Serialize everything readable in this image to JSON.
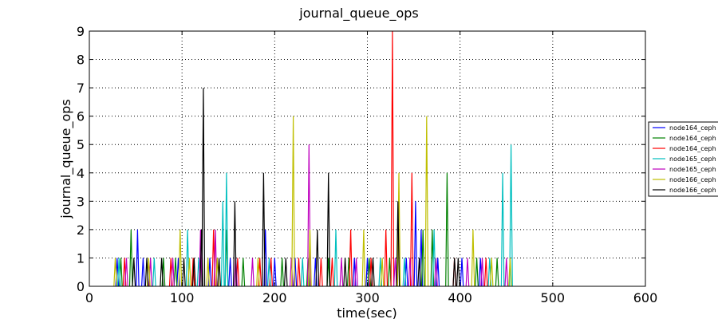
{
  "chart_data": {
    "type": "line",
    "title": "journal_queue_ops",
    "xlabel": "time(sec)",
    "ylabel": "journal_queue_ops",
    "xlim": [
      0,
      600
    ],
    "ylim": [
      0,
      9
    ],
    "xticks": [
      0,
      100,
      200,
      300,
      400,
      500,
      600
    ],
    "yticks": [
      0,
      1,
      2,
      3,
      4,
      5,
      6,
      7,
      8,
      9
    ],
    "grid": true,
    "legend_position": "right",
    "series": [
      {
        "name": "node164_ceph",
        "color": "#0000ff",
        "points": [
          [
            30,
            1
          ],
          [
            52,
            2
          ],
          [
            58,
            1
          ],
          [
            96,
            1
          ],
          [
            130,
            1
          ],
          [
            152,
            1
          ],
          [
            190,
            2
          ],
          [
            200,
            1
          ],
          [
            222,
            1
          ],
          [
            244,
            1
          ],
          [
            286,
            1
          ],
          [
            300,
            1
          ],
          [
            342,
            1
          ],
          [
            352,
            3
          ],
          [
            358,
            2
          ],
          [
            376,
            1
          ],
          [
            402,
            1
          ],
          [
            422,
            1
          ]
        ]
      },
      {
        "name": "node164_ceph",
        "color": "#008000",
        "points": [
          [
            34,
            1
          ],
          [
            45,
            2
          ],
          [
            80,
            1
          ],
          [
            93,
            1
          ],
          [
            148,
            2
          ],
          [
            166,
            1
          ],
          [
            208,
            1
          ],
          [
            236,
            1
          ],
          [
            258,
            1
          ],
          [
            280,
            1
          ],
          [
            302,
            1
          ],
          [
            324,
            1
          ],
          [
            360,
            2
          ],
          [
            370,
            2
          ],
          [
            386,
            4
          ],
          [
            418,
            1
          ],
          [
            440,
            1
          ]
        ]
      },
      {
        "name": "node164_ceph",
        "color": "#ff0000",
        "points": [
          [
            38,
            1
          ],
          [
            88,
            1
          ],
          [
            112,
            1
          ],
          [
            134,
            2
          ],
          [
            160,
            1
          ],
          [
            184,
            1
          ],
          [
            196,
            1
          ],
          [
            226,
            1
          ],
          [
            250,
            1
          ],
          [
            262,
            1
          ],
          [
            282,
            2
          ],
          [
            304,
            1
          ],
          [
            320,
            2
          ],
          [
            327,
            9
          ],
          [
            348,
            4
          ],
          [
            394,
            1
          ],
          [
            428,
            1
          ]
        ]
      },
      {
        "name": "node165_ceph",
        "color": "#00bfbf",
        "points": [
          [
            32,
            1
          ],
          [
            70,
            1
          ],
          [
            106,
            2
          ],
          [
            118,
            1
          ],
          [
            144,
            3
          ],
          [
            148,
            4
          ],
          [
            194,
            1
          ],
          [
            230,
            1
          ],
          [
            266,
            2
          ],
          [
            314,
            1
          ],
          [
            340,
            1
          ],
          [
            372,
            2
          ],
          [
            432,
            1
          ],
          [
            446,
            4
          ],
          [
            455,
            5
          ]
        ]
      },
      {
        "name": "node165_ceph",
        "color": "#bf00bf",
        "points": [
          [
            40,
            1
          ],
          [
            66,
            1
          ],
          [
            90,
            1
          ],
          [
            120,
            2
          ],
          [
            136,
            2
          ],
          [
            158,
            1
          ],
          [
            176,
            1
          ],
          [
            218,
            1
          ],
          [
            237,
            5
          ],
          [
            272,
            1
          ],
          [
            288,
            1
          ],
          [
            330,
            1
          ],
          [
            346,
            1
          ],
          [
            374,
            1
          ],
          [
            408,
            1
          ],
          [
            424,
            1
          ],
          [
            450,
            1
          ]
        ]
      },
      {
        "name": "node166_ceph",
        "color": "#bfbf00",
        "points": [
          [
            28,
            1
          ],
          [
            64,
            1
          ],
          [
            98,
            2
          ],
          [
            108,
            1
          ],
          [
            128,
            1
          ],
          [
            138,
            1
          ],
          [
            182,
            1
          ],
          [
            220,
            6
          ],
          [
            238,
            2
          ],
          [
            296,
            2
          ],
          [
            316,
            1
          ],
          [
            334,
            4
          ],
          [
            364,
            6
          ],
          [
            414,
            2
          ],
          [
            434,
            1
          ],
          [
            454,
            1
          ]
        ]
      },
      {
        "name": "node166_ceph",
        "color": "#000000",
        "points": [
          [
            48,
            1
          ],
          [
            62,
            1
          ],
          [
            78,
            1
          ],
          [
            102,
            1
          ],
          [
            113,
            1
          ],
          [
            121,
            2
          ],
          [
            123,
            7
          ],
          [
            140,
            1
          ],
          [
            157,
            3
          ],
          [
            188,
            4
          ],
          [
            212,
            1
          ],
          [
            246,
            2
          ],
          [
            258,
            4
          ],
          [
            276,
            1
          ],
          [
            306,
            1
          ],
          [
            333,
            3
          ],
          [
            356,
            1
          ],
          [
            394,
            1
          ],
          [
            398,
            1
          ]
        ]
      }
    ]
  }
}
